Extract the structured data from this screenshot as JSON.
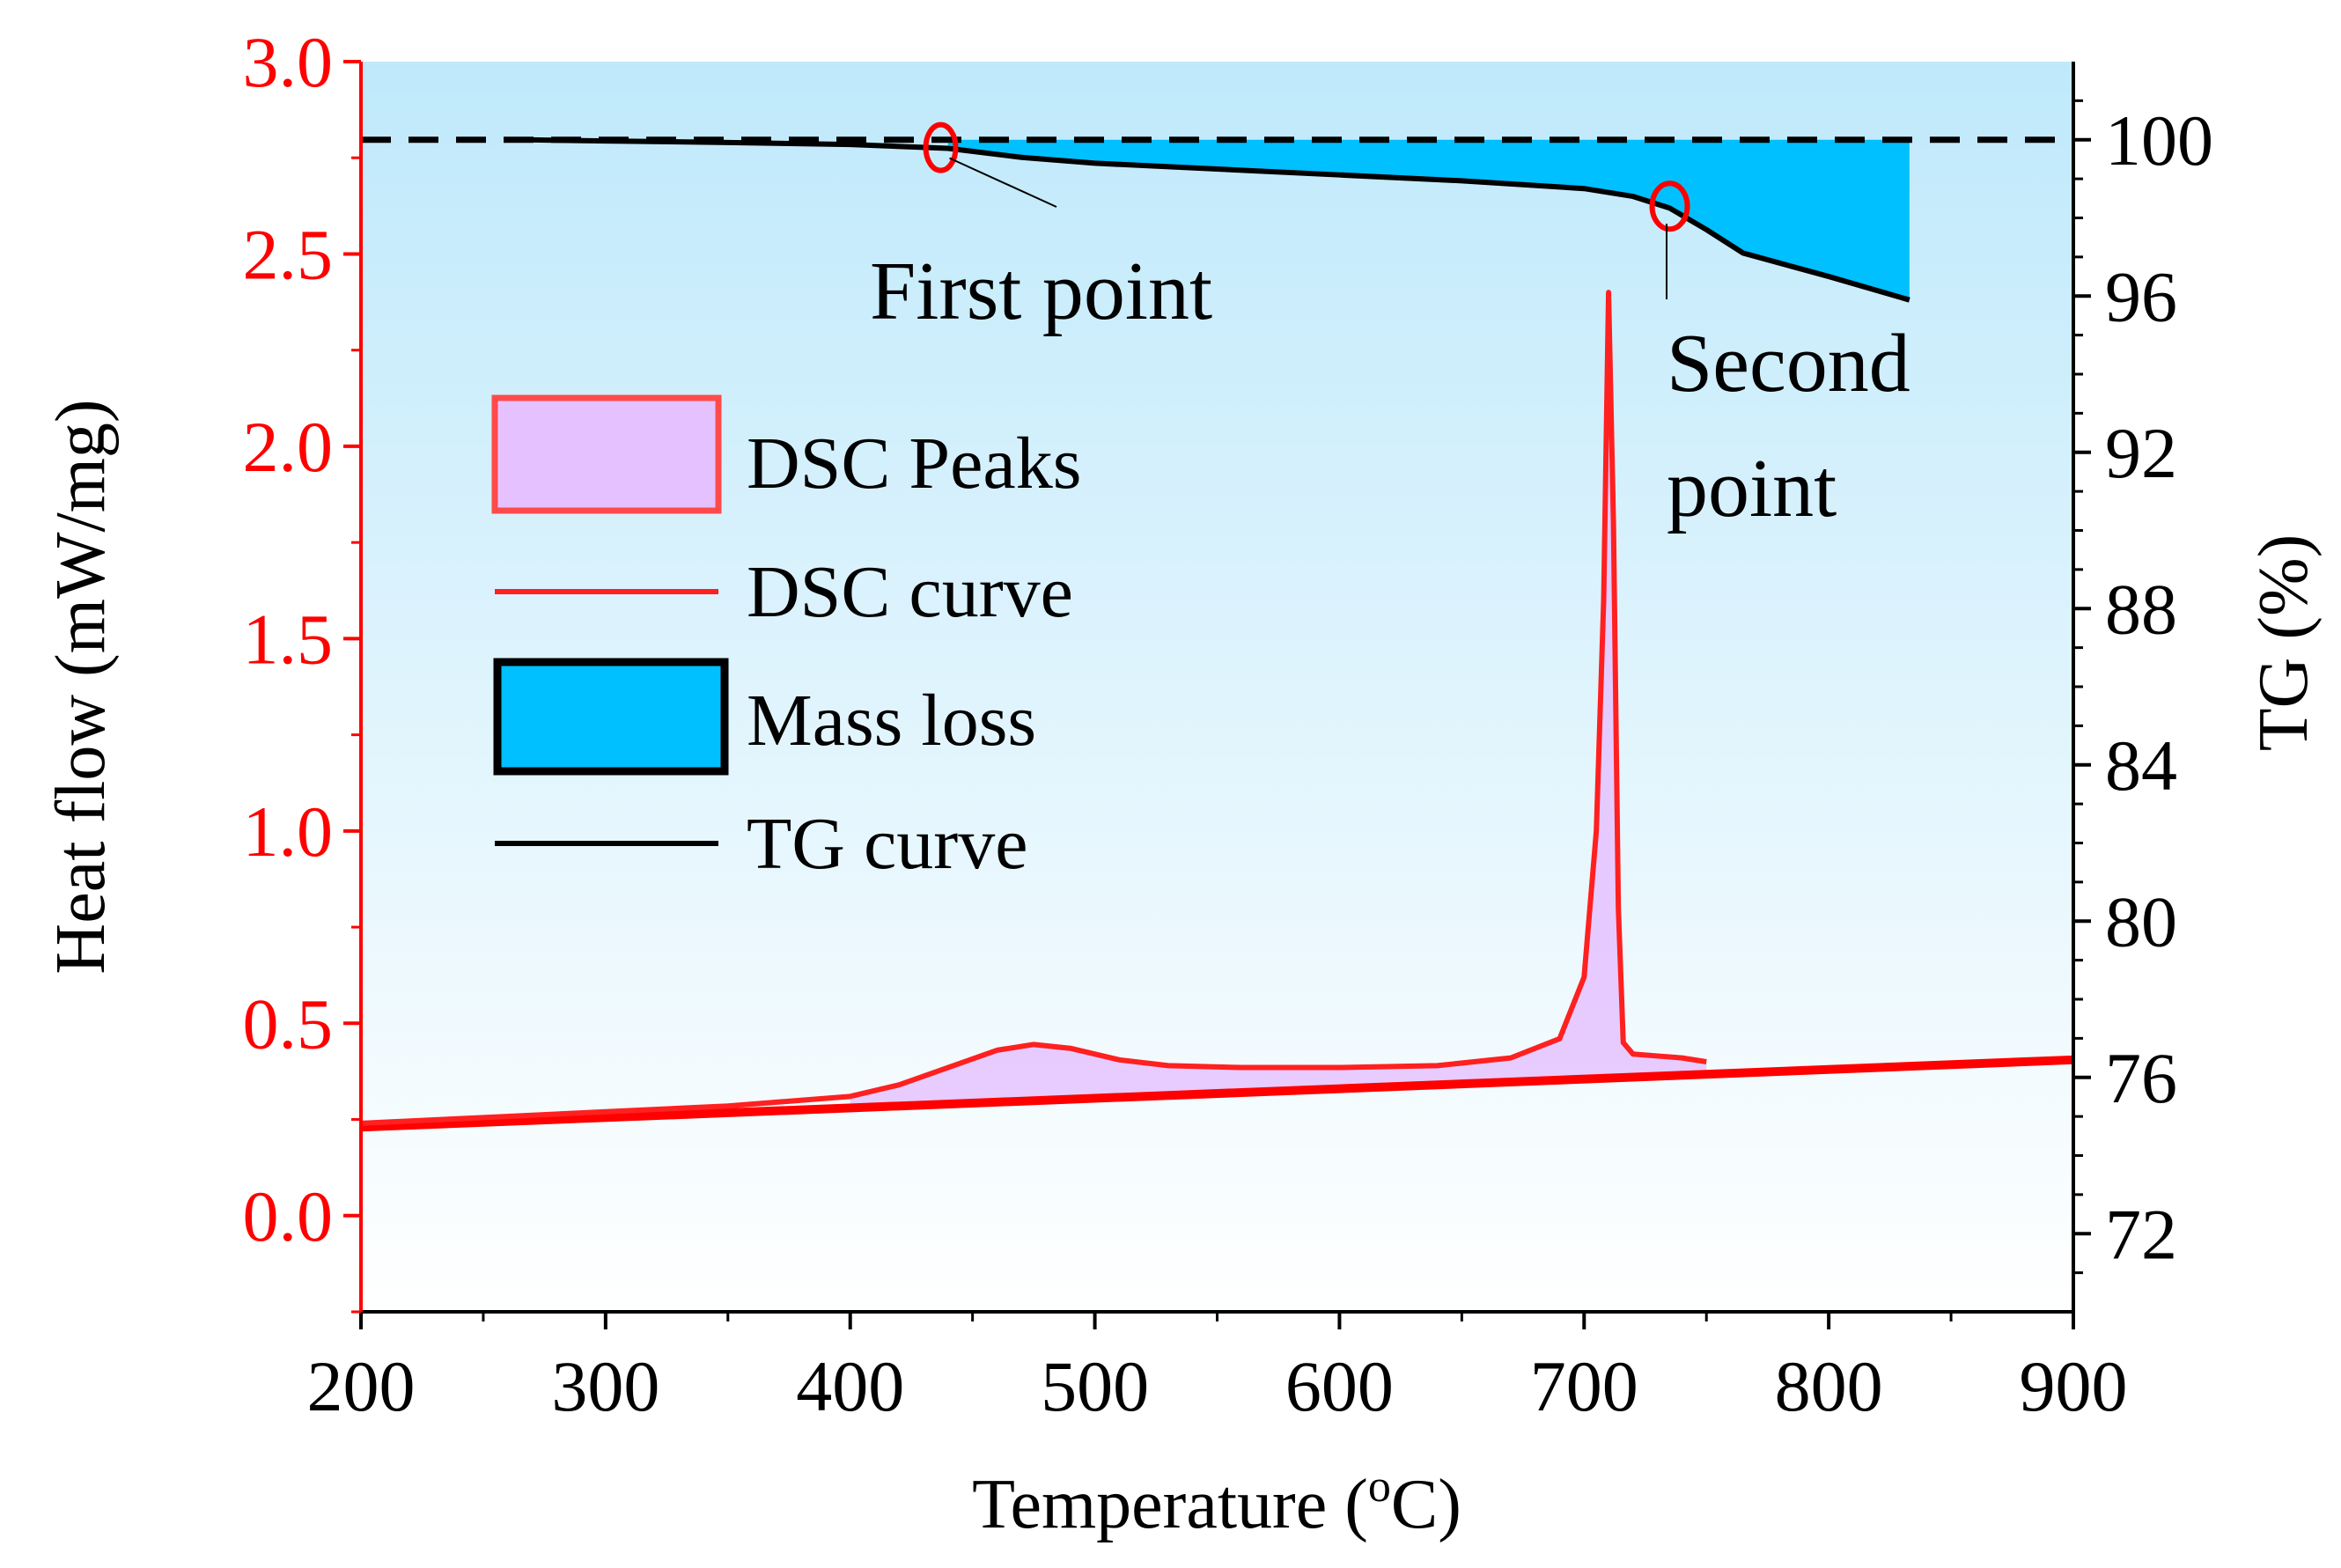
{
  "chart_data": {
    "type": "line",
    "xlabel_main": "Temperature (",
    "xlabel_sup": "o",
    "xlabel_tail": "C)",
    "ylabel_left": "Heat flow (mW/mg)",
    "ylabel_right": "TG (%)",
    "xlim": [
      200,
      900
    ],
    "ylim_left": [
      -0.25,
      3.0
    ],
    "ylim_right": [
      70,
      102
    ],
    "x_ticks": [
      200,
      300,
      400,
      500,
      600,
      700,
      800,
      900
    ],
    "x_tick_labels": [
      "200",
      "300",
      "400",
      "500",
      "600",
      "700",
      "800",
      "900"
    ],
    "y_left_ticks": [
      0.0,
      0.5,
      1.0,
      1.5,
      2.0,
      2.5,
      3.0
    ],
    "y_left_tick_labels": [
      "0.0",
      "0.5",
      "1.0",
      "1.5",
      "2.0",
      "2.5",
      "3.0"
    ],
    "y_right_ticks": [
      72,
      76,
      80,
      84,
      88,
      92,
      96,
      100
    ],
    "y_right_tick_labels": [
      "72",
      "76",
      "80",
      "84",
      "88",
      "92",
      "96",
      "100"
    ],
    "tg_reference_level": 100,
    "series": [
      {
        "name": "DSC curve",
        "axis": "left",
        "color": "#ff2020",
        "x": [
          200,
          250,
          300,
          350,
          400,
          420,
          440,
          460,
          475,
          490,
          510,
          530,
          560,
          600,
          640,
          670,
          690,
          700,
          705,
          708,
          710,
          712,
          714,
          716,
          720,
          730,
          740,
          750
        ],
        "y": [
          0.24,
          0.255,
          0.27,
          0.285,
          0.31,
          0.34,
          0.385,
          0.43,
          0.445,
          0.435,
          0.405,
          0.39,
          0.385,
          0.385,
          0.39,
          0.41,
          0.46,
          0.62,
          1.0,
          1.6,
          2.4,
          1.8,
          0.8,
          0.45,
          0.42,
          0.415,
          0.41,
          0.4
        ]
      },
      {
        "name": "DSC baseline",
        "axis": "left",
        "color": "#ff0000",
        "x": [
          200,
          900
        ],
        "y": [
          0.23,
          0.405
        ]
      },
      {
        "name": "TG curve",
        "axis": "right",
        "color": "#000000",
        "x": [
          267,
          300,
          350,
          400,
          440,
          470,
          500,
          550,
          600,
          650,
          700,
          720,
          735,
          750,
          765,
          800,
          833
        ],
        "y": [
          100.0,
          99.97,
          99.93,
          99.88,
          99.78,
          99.55,
          99.4,
          99.25,
          99.1,
          98.95,
          98.75,
          98.55,
          98.25,
          97.7,
          97.1,
          96.5,
          95.9
        ]
      }
    ],
    "mass_loss_range": [
      440,
      833
    ],
    "dsc_peaks_range": [
      400,
      750
    ],
    "legend": [
      {
        "label": "DSC Peaks",
        "kind": "patch",
        "fill": "#e5c2ff",
        "edge": "#ff4a4a"
      },
      {
        "label": "DSC curve",
        "kind": "line",
        "color": "#ff2020"
      },
      {
        "label": "Mass loss",
        "kind": "patch",
        "fill": "#00c0ff",
        "edge": "#000000"
      },
      {
        "label": "TG curve",
        "kind": "line",
        "color": "#000000"
      }
    ],
    "annotations": [
      {
        "lines": [
          "First point"
        ],
        "x": 437,
        "y_tg": 99.8
      },
      {
        "lines": [
          "Second",
          "point"
        ],
        "x": 735,
        "y_tg": 98.3
      }
    ],
    "colors": {
      "left_axis": "#ff0000",
      "right_axis": "#000000",
      "background_top": "#bfe9fb",
      "background_bottom": "#ffffff"
    }
  }
}
